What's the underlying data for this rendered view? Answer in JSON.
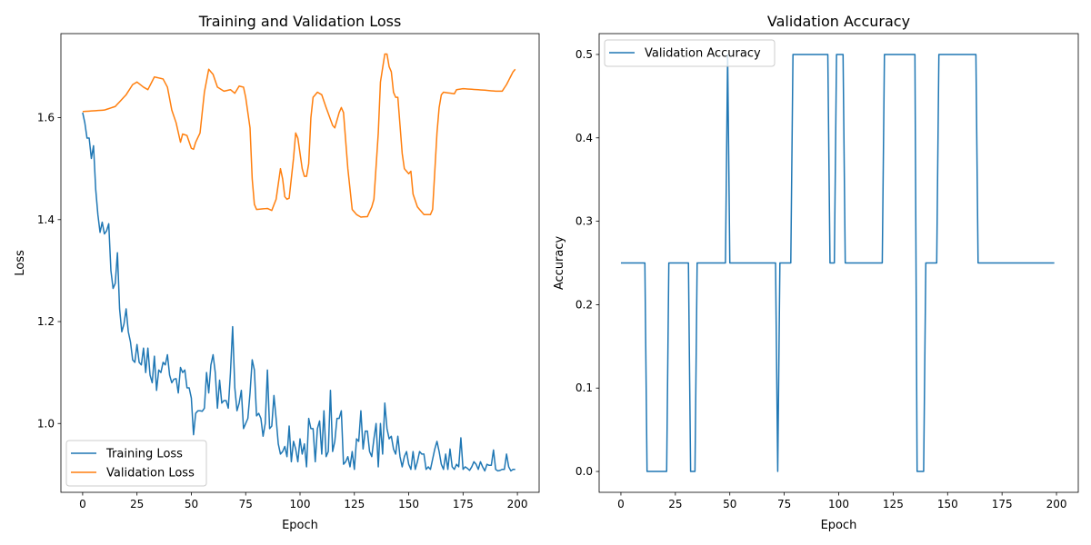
{
  "chart_data": [
    {
      "type": "line",
      "title": "Training and Validation Loss",
      "xlabel": "Epoch",
      "ylabel": "Loss",
      "xlim": [
        -10,
        210
      ],
      "ylim": [
        0.865,
        1.765
      ],
      "xticks": [
        0,
        25,
        50,
        75,
        100,
        125,
        150,
        175,
        200
      ],
      "yticks": [
        1.0,
        1.2,
        1.4,
        1.6
      ],
      "ytick_labels": [
        "1.0",
        "1.2",
        "1.4",
        "1.6"
      ],
      "grid": false,
      "legend_position": "lower-left",
      "series": [
        {
          "name": "Training Loss",
          "color": "#1f77b4",
          "values": [
            1.61,
            1.59,
            1.56,
            1.56,
            1.52,
            1.545,
            1.46,
            1.41,
            1.375,
            1.395,
            1.372,
            1.378,
            1.392,
            1.3,
            1.265,
            1.275,
            1.335,
            1.225,
            1.18,
            1.195,
            1.225,
            1.18,
            1.16,
            1.125,
            1.12,
            1.155,
            1.12,
            1.115,
            1.148,
            1.1,
            1.148,
            1.095,
            1.08,
            1.132,
            1.065,
            1.105,
            1.1,
            1.12,
            1.115,
            1.135,
            1.095,
            1.08,
            1.087,
            1.088,
            1.06,
            1.11,
            1.1,
            1.105,
            1.07,
            1.07,
            1.05,
            0.978,
            1.02,
            1.025,
            1.025,
            1.024,
            1.03,
            1.1,
            1.06,
            1.115,
            1.135,
            1.1,
            1.03,
            1.085,
            1.04,
            1.045,
            1.045,
            1.03,
            1.1,
            1.19,
            1.07,
            1.025,
            1.04,
            1.065,
            0.99,
            1.0,
            1.01,
            1.06,
            1.125,
            1.105,
            1.015,
            1.02,
            1.01,
            0.975,
            1.0,
            1.105,
            0.99,
            0.995,
            1.055,
            1.01,
            0.96,
            0.94,
            0.945,
            0.955,
            0.935,
            0.995,
            0.925,
            0.965,
            0.95,
            0.925,
            0.97,
            0.94,
            0.96,
            0.915,
            1.01,
            0.99,
            0.99,
            0.925,
            0.99,
            1.005,
            0.94,
            1.025,
            0.935,
            0.945,
            1.065,
            0.945,
            0.965,
            1.01,
            1.01,
            1.025,
            0.92,
            0.925,
            0.935,
            0.915,
            0.945,
            0.91,
            0.97,
            0.965,
            1.025,
            0.95,
            0.985,
            0.985,
            0.945,
            0.935,
            0.97,
            1.0,
            0.915,
            1.0,
            0.94,
            1.04,
            0.99,
            0.97,
            0.975,
            0.95,
            0.94,
            0.975,
            0.935,
            0.915,
            0.935,
            0.945,
            0.92,
            0.91,
            0.945,
            0.91,
            0.925,
            0.945,
            0.94,
            0.94,
            0.91,
            0.915,
            0.91,
            0.93,
            0.95,
            0.965,
            0.945,
            0.92,
            0.91,
            0.94,
            0.91,
            0.95,
            0.915,
            0.91,
            0.92,
            0.915,
            0.972,
            0.91,
            0.915,
            0.912,
            0.908,
            0.915,
            0.925,
            0.92,
            0.91,
            0.925,
            0.915,
            0.907,
            0.92,
            0.918,
            0.918,
            0.948,
            0.91,
            0.907,
            0.908,
            0.91,
            0.91,
            0.94,
            0.915,
            0.907,
            0.91,
            0.91
          ]
        },
        {
          "name": "Validation Loss",
          "color": "#ff7f0e",
          "points": [
            [
              0,
              1.612
            ],
            [
              10,
              1.615
            ],
            [
              15,
              1.622
            ],
            [
              20,
              1.645
            ],
            [
              23,
              1.665
            ],
            [
              25,
              1.67
            ],
            [
              28,
              1.66
            ],
            [
              30,
              1.655
            ],
            [
              33,
              1.68
            ],
            [
              37,
              1.676
            ],
            [
              39,
              1.66
            ],
            [
              41,
              1.615
            ],
            [
              43,
              1.59
            ],
            [
              45,
              1.552
            ],
            [
              46,
              1.568
            ],
            [
              48,
              1.565
            ],
            [
              50,
              1.54
            ],
            [
              51,
              1.538
            ],
            [
              52,
              1.552
            ],
            [
              54,
              1.57
            ],
            [
              56,
              1.65
            ],
            [
              58,
              1.695
            ],
            [
              60,
              1.685
            ],
            [
              62,
              1.66
            ],
            [
              65,
              1.652
            ],
            [
              68,
              1.655
            ],
            [
              70,
              1.648
            ],
            [
              72,
              1.662
            ],
            [
              74,
              1.66
            ],
            [
              75,
              1.64
            ],
            [
              77,
              1.58
            ],
            [
              78,
              1.48
            ],
            [
              79,
              1.43
            ],
            [
              80,
              1.42
            ],
            [
              85,
              1.422
            ],
            [
              87,
              1.418
            ],
            [
              89,
              1.44
            ],
            [
              91,
              1.5
            ],
            [
              92,
              1.48
            ],
            [
              93,
              1.445
            ],
            [
              94,
              1.44
            ],
            [
              95,
              1.442
            ],
            [
              97,
              1.52
            ],
            [
              98,
              1.57
            ],
            [
              99,
              1.56
            ],
            [
              101,
              1.5
            ],
            [
              102,
              1.485
            ],
            [
              103,
              1.485
            ],
            [
              104,
              1.51
            ],
            [
              105,
              1.6
            ],
            [
              106,
              1.64
            ],
            [
              108,
              1.65
            ],
            [
              110,
              1.645
            ],
            [
              112,
              1.62
            ],
            [
              115,
              1.585
            ],
            [
              116,
              1.58
            ],
            [
              118,
              1.61
            ],
            [
              119,
              1.62
            ],
            [
              120,
              1.61
            ],
            [
              122,
              1.5
            ],
            [
              124,
              1.42
            ],
            [
              126,
              1.41
            ],
            [
              128,
              1.405
            ],
            [
              131,
              1.406
            ],
            [
              133,
              1.425
            ],
            [
              134,
              1.44
            ],
            [
              136,
              1.57
            ],
            [
              137,
              1.67
            ],
            [
              139,
              1.725
            ],
            [
              140,
              1.725
            ],
            [
              141,
              1.7
            ],
            [
              142,
              1.69
            ],
            [
              143,
              1.65
            ],
            [
              144,
              1.64
            ],
            [
              145,
              1.64
            ],
            [
              147,
              1.53
            ],
            [
              148,
              1.5
            ],
            [
              150,
              1.49
            ],
            [
              151,
              1.495
            ],
            [
              152,
              1.45
            ],
            [
              154,
              1.425
            ],
            [
              157,
              1.41
            ],
            [
              160,
              1.41
            ],
            [
              161,
              1.42
            ],
            [
              163,
              1.57
            ],
            [
              164,
              1.62
            ],
            [
              165,
              1.645
            ],
            [
              166,
              1.65
            ],
            [
              171,
              1.647
            ],
            [
              172,
              1.655
            ],
            [
              175,
              1.657
            ],
            [
              185,
              1.654
            ],
            [
              190,
              1.652
            ],
            [
              193,
              1.652
            ],
            [
              195,
              1.665
            ],
            [
              198,
              1.69
            ],
            [
              199,
              1.695
            ]
          ]
        }
      ]
    },
    {
      "type": "line",
      "title": "Validation Accuracy",
      "xlabel": "Epoch",
      "ylabel": "Accuracy",
      "xlim": [
        -10,
        210
      ],
      "ylim": [
        -0.025,
        0.525
      ],
      "xticks": [
        0,
        25,
        50,
        75,
        100,
        125,
        150,
        175,
        200
      ],
      "yticks": [
        0.0,
        0.1,
        0.2,
        0.3,
        0.4,
        0.5
      ],
      "ytick_labels": [
        "0.0",
        "0.1",
        "0.2",
        "0.3",
        "0.4",
        "0.5"
      ],
      "grid": false,
      "legend_position": "upper-left",
      "series": [
        {
          "name": "Validation Accuracy",
          "color": "#1f77b4",
          "steps": [
            {
              "from": 0,
              "to": 11,
              "value": 0.25
            },
            {
              "from": 12,
              "to": 21,
              "value": 0.0
            },
            {
              "from": 22,
              "to": 31,
              "value": 0.25
            },
            {
              "from": 32,
              "to": 34,
              "value": 0.0
            },
            {
              "from": 35,
              "to": 48,
              "value": 0.25
            },
            {
              "from": 49,
              "to": 49,
              "value": 0.5
            },
            {
              "from": 50,
              "to": 71,
              "value": 0.25
            },
            {
              "from": 72,
              "to": 72,
              "value": 0.0
            },
            {
              "from": 73,
              "to": 78,
              "value": 0.25
            },
            {
              "from": 79,
              "to": 95,
              "value": 0.5
            },
            {
              "from": 96,
              "to": 98,
              "value": 0.25
            },
            {
              "from": 99,
              "to": 102,
              "value": 0.5
            },
            {
              "from": 103,
              "to": 120,
              "value": 0.25
            },
            {
              "from": 121,
              "to": 135,
              "value": 0.5
            },
            {
              "from": 136,
              "to": 139,
              "value": 0.0
            },
            {
              "from": 140,
              "to": 145,
              "value": 0.25
            },
            {
              "from": 146,
              "to": 163,
              "value": 0.5
            },
            {
              "from": 164,
              "to": 199,
              "value": 0.25
            }
          ]
        }
      ]
    }
  ]
}
